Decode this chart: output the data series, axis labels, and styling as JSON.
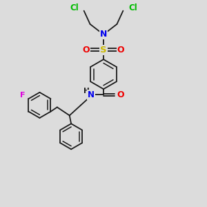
{
  "bg_color": "#dcdcdc",
  "bond_color": "#1a1a1a",
  "atom_colors": {
    "Cl": "#00bb00",
    "N": "#0000ee",
    "S": "#ccbb00",
    "O": "#ee0000",
    "F": "#dd00dd",
    "H": "#1a1a1a",
    "C": "#1a1a1a"
  },
  "font_size": 8,
  "line_width": 1.3
}
